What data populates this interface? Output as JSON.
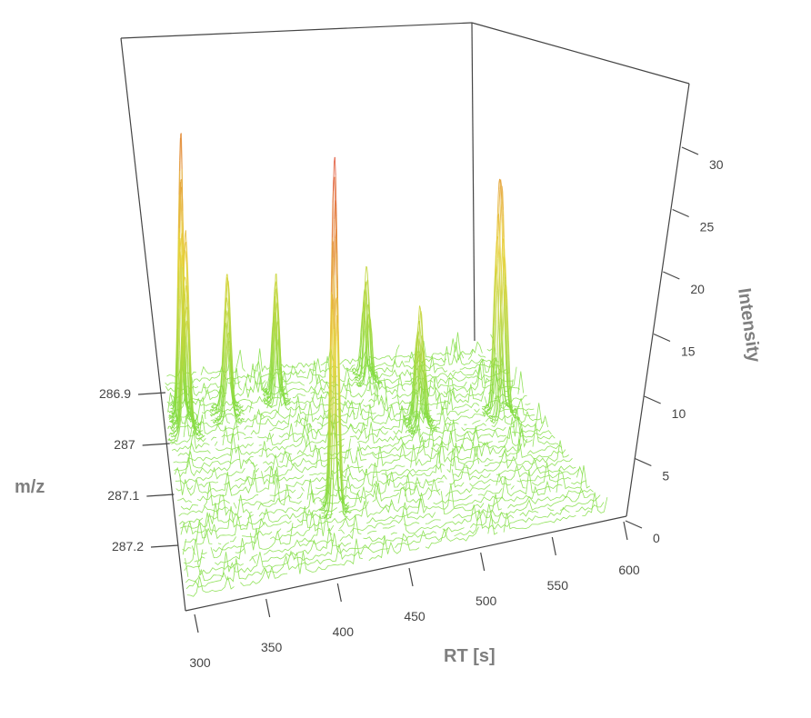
{
  "chart_data": {
    "type": "surface-3d",
    "x_axis": {
      "label": "RT [s]",
      "range": [
        300,
        600
      ],
      "ticks": [
        300,
        350,
        400,
        450,
        500,
        550,
        600
      ],
      "tick_labels": [
        "300",
        "350",
        "400",
        "450",
        "500",
        "550",
        "600"
      ]
    },
    "y_axis": {
      "label": "m/z",
      "range": [
        286.85,
        287.25
      ],
      "ticks": [
        286.9,
        287.0,
        287.1,
        287.2
      ],
      "tick_labels": [
        "286.9",
        "287",
        "287.1",
        "287.2"
      ]
    },
    "z_axis": {
      "label": "Intensity",
      "range": [
        0,
        33
      ],
      "ticks": [
        0,
        5,
        10,
        15,
        20,
        25,
        30
      ],
      "tick_labels": [
        "0",
        "5",
        "10",
        "15",
        "20",
        "25",
        "30"
      ]
    },
    "color_scale": {
      "low": "#7fdc40",
      "mid": "#e8d23a",
      "high": "#e04a3c"
    },
    "peaks": [
      {
        "rt": 313,
        "mz": 286.93,
        "intensity": 26,
        "width_rt": 3
      },
      {
        "rt": 315,
        "mz": 286.96,
        "intensity": 18,
        "width_rt": 4
      },
      {
        "rt": 352,
        "mz": 286.94,
        "intensity": 13,
        "width_rt": 4
      },
      {
        "rt": 396,
        "mz": 286.92,
        "intensity": 11,
        "width_rt": 3
      },
      {
        "rt": 417,
        "mz": 287.13,
        "intensity": 32,
        "width_rt": 3
      },
      {
        "rt": 478,
        "mz": 286.9,
        "intensity": 10,
        "width_rt": 3
      },
      {
        "rt": 504,
        "mz": 287.0,
        "intensity": 11,
        "width_rt": 4
      },
      {
        "rt": 570,
        "mz": 287.0,
        "intensity": 23,
        "width_rt": 4
      }
    ]
  }
}
